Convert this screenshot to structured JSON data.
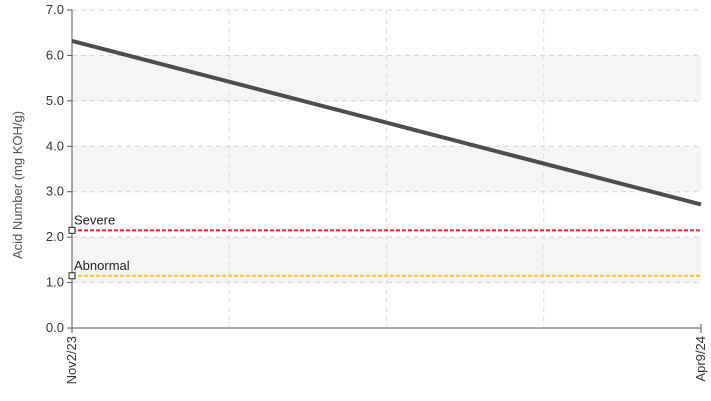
{
  "chart_data": {
    "type": "line",
    "title": "",
    "ylabel": "Acid Number (mg KOH/g)",
    "xlabel": "",
    "ylim": [
      0,
      7
    ],
    "yticks": [
      "0.0",
      "1.0",
      "2.0",
      "3.0",
      "4.0",
      "5.0",
      "6.0",
      "7.0"
    ],
    "x": [
      "Nov2/23",
      "Apr9/24"
    ],
    "series": [
      {
        "values": [
          6.32,
          2.72
        ],
        "color": "#4d4d4d"
      }
    ],
    "thresholds": [
      {
        "label": "Severe",
        "value": 2.15,
        "color": "#e3262a"
      },
      {
        "label": "Abnormal",
        "value": 1.15,
        "color": "#f2c230"
      }
    ],
    "grid": true,
    "band_fill": "#f5f5f5"
  }
}
